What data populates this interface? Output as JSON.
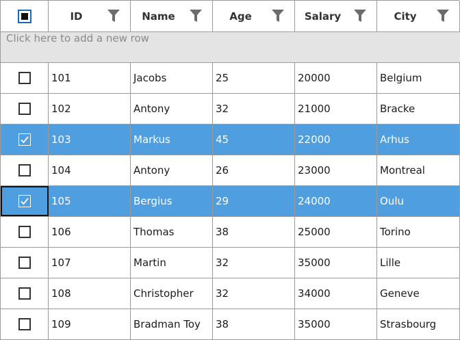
{
  "grid": {
    "header_checkbox_state": "indeterminate",
    "columns": [
      {
        "key": "id",
        "label": "ID"
      },
      {
        "key": "name",
        "label": "Name"
      },
      {
        "key": "age",
        "label": "Age"
      },
      {
        "key": "salary",
        "label": "Salary"
      },
      {
        "key": "city",
        "label": "City"
      }
    ],
    "add_row_placeholder": "Click here to add a new row",
    "rows": [
      {
        "id": "101",
        "name": "Jacobs",
        "age": "25",
        "salary": "20000",
        "city": "Belgium",
        "checked": false
      },
      {
        "id": "102",
        "name": "Antony",
        "age": "32",
        "salary": "21000",
        "city": "Bracke",
        "checked": false
      },
      {
        "id": "103",
        "name": "Markus",
        "age": "45",
        "salary": "22000",
        "city": "Arhus",
        "checked": true
      },
      {
        "id": "104",
        "name": "Antony",
        "age": "26",
        "salary": "23000",
        "city": "Montreal",
        "checked": false
      },
      {
        "id": "105",
        "name": "Bergius",
        "age": "29",
        "salary": "24000",
        "city": "Oulu",
        "checked": true,
        "current": true
      },
      {
        "id": "106",
        "name": "Thomas",
        "age": "38",
        "salary": "25000",
        "city": "Torino",
        "checked": false
      },
      {
        "id": "107",
        "name": "Martin",
        "age": "32",
        "salary": "35000",
        "city": "Lille",
        "checked": false
      },
      {
        "id": "108",
        "name": "Christopher",
        "age": "32",
        "salary": "34000",
        "city": "Geneve",
        "checked": false
      },
      {
        "id": "109",
        "name": "Bradman Toy",
        "age": "38",
        "salary": "35000",
        "city": "Strasbourg",
        "checked": false
      }
    ],
    "colors": {
      "selection": "#4f9fe0",
      "add_row_bg": "#e4e4e4",
      "grid_line": "#9a9a9a"
    },
    "icons": {
      "filter": "filter-funnel-icon",
      "check": "checkmark-icon"
    }
  }
}
